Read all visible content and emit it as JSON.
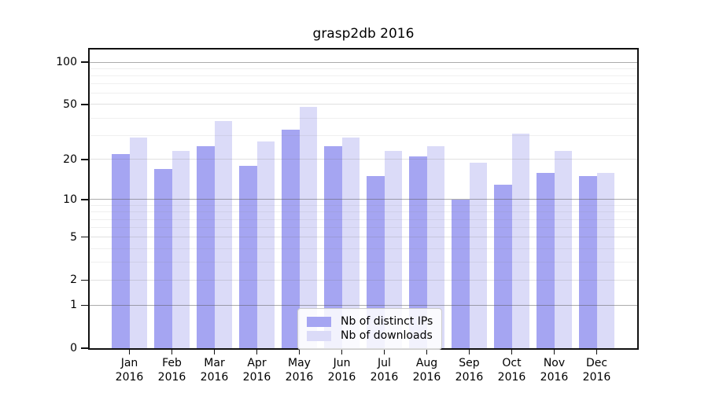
{
  "title": "grasp2db 2016",
  "chart_data": {
    "type": "bar",
    "title": "grasp2db 2016",
    "categories": [
      "Jan 2016",
      "Feb 2016",
      "Mar 2016",
      "Apr 2016",
      "May 2016",
      "Jun 2016",
      "Jul 2016",
      "Aug 2016",
      "Sep 2016",
      "Oct 2016",
      "Nov 2016",
      "Dec 2016"
    ],
    "series": [
      {
        "name": "Nb of distinct IPs",
        "color": "#a5a5f2",
        "values": [
          22,
          17,
          25,
          18,
          33,
          25,
          15,
          21,
          10,
          13,
          16,
          15
        ]
      },
      {
        "name": "Nb of downloads",
        "color": "#dbdbf8",
        "values": [
          29,
          23,
          38,
          27,
          48,
          29,
          23,
          25,
          19,
          31,
          23,
          16
        ]
      }
    ],
    "xlabel": "",
    "ylabel": "",
    "yticks": [
      0,
      1,
      2,
      5,
      10,
      20,
      50,
      100
    ],
    "yscale": "log1p",
    "ylim": [
      0,
      126
    ],
    "grid": "both",
    "gridlines": {
      "decade": [
        1,
        10,
        100
      ],
      "labeled": [
        2,
        5,
        20,
        50
      ],
      "minor": [
        3,
        4,
        6,
        7,
        8,
        9,
        30,
        40,
        60,
        70,
        80,
        90
      ]
    },
    "legend_position": "lower center"
  }
}
